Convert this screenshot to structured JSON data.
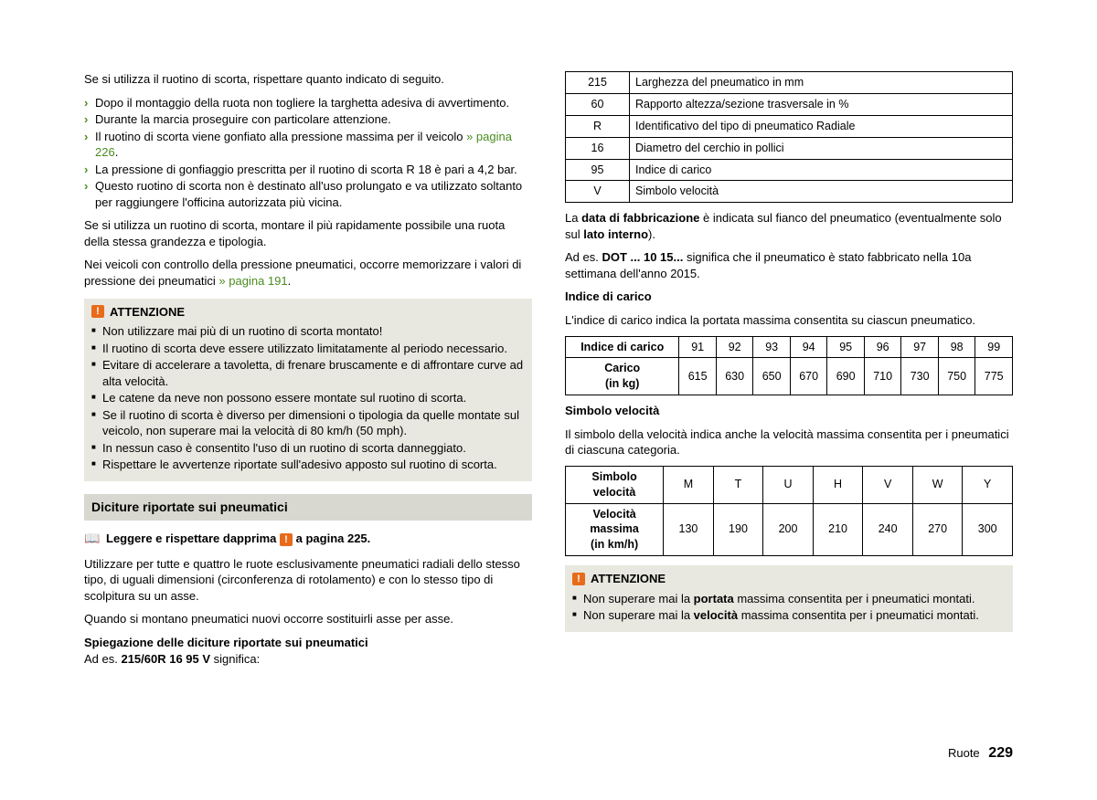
{
  "left": {
    "intro": "Se si utilizza il ruotino di scorta, rispettare quanto indicato di seguito.",
    "bullets": {
      "b0": "Dopo il montaggio della ruota non togliere la targhetta adesiva di avvertimento.",
      "b1": "Durante la marcia proseguire con particolare attenzione.",
      "b2a": "Il ruotino di scorta viene gonfiato alla pressione massima per il veicolo ",
      "b2link": "» pagina 226",
      "b2b": ".",
      "b3": "La pressione di gonfiaggio prescritta per il ruotino di scorta R 18 è pari a 4,2 bar.",
      "b4": "Questo ruotino di scorta non è destinato all'uso prolungato e va utilizzato soltanto per raggiungere l'officina autorizzata più vicina."
    },
    "p2": "Se si utilizza un ruotino di scorta, montare il più rapidamente possibile una ruota della stessa grandezza e tipologia.",
    "p3a": "Nei veicoli con controllo della pressione pneumatici, occorre memorizzare i valori di pressione dei pneumatici ",
    "p3link": "» pagina 191",
    "p3b": ".",
    "warn1": {
      "head": "ATTENZIONE",
      "w0": "Non utilizzare mai più di un ruotino di scorta montato!",
      "w1": "Il ruotino di scorta deve essere utilizzato limitatamente al periodo necessario.",
      "w2": "Evitare di accelerare a tavoletta, di frenare bruscamente e di affrontare curve ad alta velocità.",
      "w3": "Le catene da neve non possono essere montate sul ruotino di scorta.",
      "w4": "Se il ruotino di scorta è diverso per dimensioni o tipologia da quelle montate sul veicolo, non superare mai la velocità di 80 km/h (50 mph).",
      "w5": "In nessun caso è consentito l'uso di un ruotino di scorta danneggiato.",
      "w6": "Rispettare le avvertenze riportate sull'adesivo apposto sul ruotino di scorta."
    },
    "section": "Diciture riportate sui pneumatici",
    "readfirst_a": "Leggere e rispettare dapprima ",
    "readfirst_b": " a pagina 225.",
    "p4": "Utilizzare per tutte e quattro le ruote esclusivamente pneumatici radiali dello stesso tipo, di uguali dimensioni (circonferenza di rotolamento) e con lo stesso tipo di scolpitura su un asse.",
    "p5": "Quando si montano pneumatici nuovi occorre sostituirli asse per asse.",
    "p6head": "Spiegazione delle diciture riportate sui pneumatici",
    "p6a": "Ad es. ",
    "p6code": "215/60R 16 95 V",
    "p6b": " significa:"
  },
  "right": {
    "spec": {
      "r0c0": "215",
      "r0c1": "Larghezza del pneumatico in mm",
      "r1c0": "60",
      "r1c1": "Rapporto altezza/sezione trasversale in %",
      "r2c0": "R",
      "r2c1": "Identificativo del tipo di pneumatico Radiale",
      "r3c0": "16",
      "r3c1": "Diametro del cerchio in pollici",
      "r4c0": "95",
      "r4c1": "Indice di carico",
      "r5c0": "V",
      "r5c1": "Simbolo velocità"
    },
    "p1a": "La ",
    "p1b": "data di fabbricazione",
    "p1c": " è indicata sul fianco del pneumatico (eventualmente solo sul ",
    "p1d": "lato interno",
    "p1e": ").",
    "p2a": "Ad es. ",
    "p2b": "DOT ... 10 15...",
    "p2c": " significa che il pneumatico è stato fabbricato nella 10a settimana dell'anno 2015.",
    "load_head": "Indice di carico",
    "load_desc": "L'indice di carico indica la portata massima consentita su ciascun pneumatico.",
    "load_table": {
      "h0": "Indice di carico",
      "c91": "91",
      "c92": "92",
      "c93": "93",
      "c94": "94",
      "c95": "95",
      "c96": "96",
      "c97": "97",
      "c98": "98",
      "c99": "99",
      "h1a": "Carico",
      "h1b": "(in kg)",
      "v91": "615",
      "v92": "630",
      "v93": "650",
      "v94": "670",
      "v95": "690",
      "v96": "710",
      "v97": "730",
      "v98": "750",
      "v99": "775"
    },
    "speed_head": "Simbolo velocità",
    "speed_desc": "Il simbolo della velocità indica anche la velocità massima consentita per i pneumatici di ciascuna categoria.",
    "speed_table": {
      "h0a": "Simbolo",
      "h0b": "velocità",
      "sM": "M",
      "sT": "T",
      "sU": "U",
      "sH": "H",
      "sV": "V",
      "sW": "W",
      "sY": "Y",
      "h1a": "Velocità",
      "h1b": "massima",
      "h1c": "(in km/h)",
      "vM": "130",
      "vT": "190",
      "vU": "200",
      "vH": "210",
      "vV": "240",
      "vW": "270",
      "vY": "300"
    },
    "warn2": {
      "head": "ATTENZIONE",
      "w0a": "Non superare mai la ",
      "w0b": "portata",
      "w0c": " massima consentita per i pneumatici montati.",
      "w1a": "Non superare mai la ",
      "w1b": "velocità",
      "w1c": " massima consentita per i pneumatici montati."
    }
  },
  "footer": {
    "section": "Ruote",
    "page": "229"
  },
  "colors": {
    "accent_green": "#4b8b1e",
    "warn_orange": "#e86b1a",
    "box_bg": "#e8e8e0",
    "section_bg": "#d8d8d0",
    "text": "#000000",
    "page_bg": "#ffffff"
  }
}
